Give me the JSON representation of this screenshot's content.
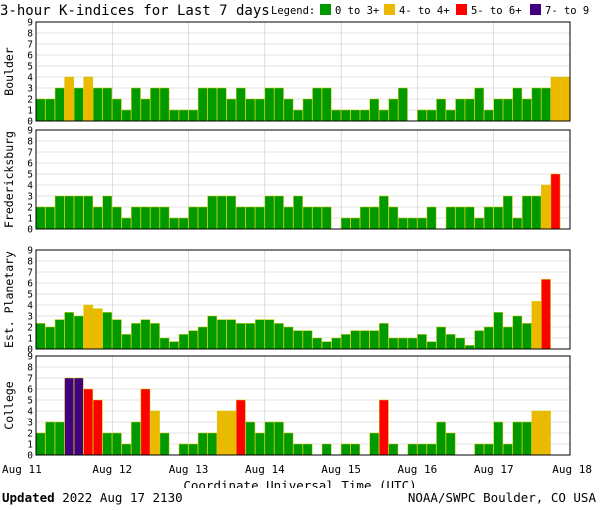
{
  "title": "3-hour K-indices for Last 7 days",
  "legend": {
    "label": "Legend:",
    "items": [
      {
        "label": "0 to 3+",
        "color": "#009900"
      },
      {
        "label": "4- to 4+",
        "color": "#ecb800"
      },
      {
        "label": "5- to 6+",
        "color": "#ff0000"
      },
      {
        "label": "7- to 9",
        "color": "#400080"
      }
    ]
  },
  "footer": {
    "updated_label": "Updated",
    "updated_value": "2022 Aug 17 2130",
    "source": "NOAA/SWPC Boulder, CO USA"
  },
  "chart_data": {
    "type": "bar",
    "xlabel": "Coordinate Universal Time (UTC)",
    "x_tick_labels": [
      "Aug 11",
      "Aug 12",
      "Aug 13",
      "Aug 14",
      "Aug 15",
      "Aug 16",
      "Aug 17",
      "Aug 18"
    ],
    "ylim": [
      0,
      9
    ],
    "y_ticks": [
      0,
      1,
      2,
      3,
      4,
      5,
      6,
      7,
      8,
      9
    ],
    "bars_per_day": 8,
    "thresholds": {
      "yellow_min": 3.67,
      "red_min": 4.67,
      "purple_min": 6.67
    },
    "colors": {
      "green": "#009900",
      "yellow": "#ecb800",
      "red": "#ff0000",
      "purple": "#400080",
      "outline": "#cccc00"
    },
    "grid": true,
    "panels": [
      {
        "name": "Boulder",
        "values": [
          2,
          2,
          3,
          4,
          3,
          4,
          3,
          3,
          2,
          1,
          3,
          2,
          3,
          3,
          1,
          1,
          1,
          3,
          3,
          3,
          2,
          3,
          2,
          2,
          3,
          3,
          2,
          1,
          2,
          3,
          3,
          1,
          1,
          1,
          1,
          2,
          1,
          2,
          3,
          0,
          1,
          1,
          2,
          1,
          2,
          2,
          3,
          1,
          2,
          2,
          3,
          2,
          3,
          3,
          4,
          4,
          0
        ]
      },
      {
        "name": "Fredericksburg",
        "values": [
          2,
          2,
          3,
          3,
          3,
          3,
          2,
          3,
          2,
          1,
          2,
          2,
          2,
          2,
          1,
          1,
          2,
          2,
          3,
          3,
          3,
          2,
          2,
          2,
          3,
          3,
          2,
          3,
          2,
          2,
          2,
          0,
          1,
          1,
          2,
          2,
          3,
          2,
          1,
          1,
          1,
          2,
          0,
          2,
          2,
          2,
          1,
          2,
          2,
          3,
          1,
          3,
          3,
          4,
          5,
          0
        ]
      },
      {
        "name": "Est. Planetary",
        "values": [
          2.33,
          2,
          2.67,
          3.33,
          3,
          4,
          3.67,
          3.33,
          2.67,
          1.33,
          2.33,
          2.67,
          2.33,
          1,
          0.67,
          1.33,
          1.67,
          2,
          3,
          2.67,
          2.67,
          2.33,
          2.33,
          2.67,
          2.67,
          2.33,
          2,
          1.67,
          1.67,
          1,
          0.67,
          1,
          1.33,
          1.67,
          1.67,
          1.67,
          2.33,
          1,
          1,
          1,
          1.33,
          0.67,
          2,
          1.33,
          1,
          0.33,
          1.67,
          2,
          3.33,
          2,
          3,
          2.33,
          4.33,
          6.33
        ]
      },
      {
        "name": "College",
        "values": [
          2,
          3,
          3,
          7,
          7,
          6,
          5,
          2,
          2,
          1,
          3,
          6,
          4,
          2,
          0,
          1,
          1,
          2,
          2,
          4,
          4,
          5,
          3,
          2,
          3,
          3,
          2,
          1,
          1,
          0,
          1,
          0,
          1,
          1,
          0,
          2,
          5,
          1,
          0,
          1,
          1,
          1,
          3,
          2,
          0,
          0,
          1,
          1,
          3,
          1,
          3,
          3,
          4,
          4
        ]
      }
    ]
  }
}
